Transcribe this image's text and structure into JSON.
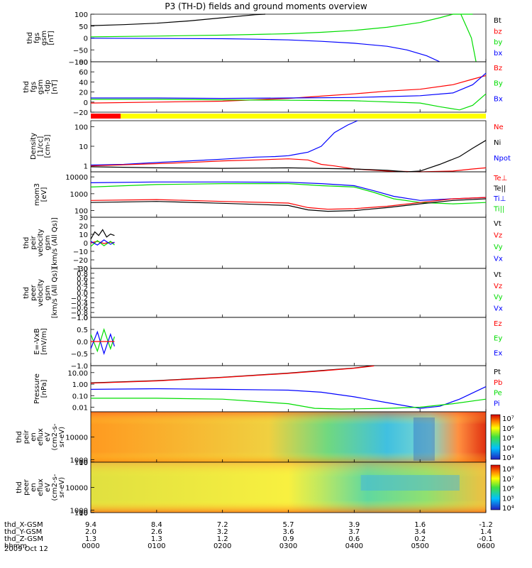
{
  "title": "P3 (TH-D) fields and ground moments overview",
  "date_label": "2009 Oct 12",
  "ephemeris": {
    "rows": [
      {
        "label": "thd_X-GSM",
        "values": [
          "9.4",
          "8.4",
          "7.2",
          "5.7",
          "3.9",
          "1.6",
          "-1.2"
        ]
      },
      {
        "label": "thd_Y-GSM",
        "values": [
          "2.0",
          "2.6",
          "3.2",
          "3.6",
          "3.7",
          "3.4",
          "1.4"
        ]
      },
      {
        "label": "thd_Z-GSM",
        "values": [
          "1.3",
          "1.3",
          "1.2",
          "0.9",
          "0.6",
          "0.2",
          "-0.1"
        ]
      },
      {
        "label": "hhmm",
        "values": [
          "0000",
          "0100",
          "0200",
          "0300",
          "0400",
          "0500",
          "0600"
        ]
      }
    ]
  },
  "colors": {
    "black": "#000000",
    "red": "#ff0000",
    "green": "#00dd00",
    "blue": "#0000ff",
    "yellow": "#ffff00"
  },
  "chart_data": [
    {
      "id": "p1",
      "type": "line",
      "ylabel": [
        "thd",
        "fgs",
        "gsm",
        "[nT]"
      ],
      "yticks": [
        "100",
        "50",
        "0",
        "−50",
        "−100"
      ],
      "ylim": [
        -100,
        100
      ],
      "legend": [
        {
          "text": "Bt",
          "color": "#000000"
        },
        {
          "text": "bz",
          "color": "#ff0000"
        },
        {
          "text": "by",
          "color": "#00dd00"
        },
        {
          "text": "bx",
          "color": "#0000ff"
        }
      ],
      "series": [
        {
          "name": "Bt",
          "color": "#000000",
          "x": [
            0,
            0.5,
            1,
            1.5,
            2,
            2.5,
            2.65
          ],
          "y": [
            52,
            56,
            62,
            72,
            85,
            98,
            103
          ]
        },
        {
          "name": "by",
          "color": "#00dd00",
          "x": [
            0,
            1,
            2,
            3,
            3.5,
            4,
            4.5,
            5,
            5.3,
            5.5,
            5.8
          ],
          "y": [
            5,
            8,
            12,
            18,
            24,
            32,
            45,
            65,
            85,
            100,
            100
          ]
        },
        {
          "name": "by-drop",
          "color": "#00dd00",
          "x": [
            5.62,
            5.7,
            5.78,
            5.85
          ],
          "y": [
            105,
            50,
            0,
            -105
          ]
        },
        {
          "name": "bx",
          "color": "#0000ff",
          "x": [
            0,
            1,
            2,
            2.5,
            3,
            3.5,
            4,
            4.5,
            4.8,
            5.1,
            5.3
          ],
          "y": [
            -1,
            -2,
            -3,
            -5,
            -8,
            -14,
            -22,
            -35,
            -50,
            -75,
            -100
          ]
        }
      ]
    },
    {
      "id": "p2",
      "type": "line",
      "ylabel": [
        "thd",
        "fgs",
        "gsm",
        "-tdp",
        "[nT]"
      ],
      "yticks": [
        "80",
        "60",
        "40",
        "20",
        "0",
        "−20"
      ],
      "ylim": [
        -30,
        80
      ],
      "legend": [
        {
          "text": "Bz",
          "color": "#ff0000"
        },
        {
          "text": "By",
          "color": "#00dd00"
        },
        {
          "text": "Bx",
          "color": "#0000ff"
        }
      ],
      "series": [
        {
          "name": "Bz",
          "color": "#ff0000",
          "x": [
            0,
            1,
            2,
            3,
            3.5,
            4,
            4.5,
            5,
            5.5,
            5.8,
            6
          ],
          "y": [
            -10,
            -8,
            -6,
            0,
            5,
            10,
            16,
            20,
            30,
            42,
            50
          ]
        },
        {
          "name": "By",
          "color": "#00dd00",
          "x": [
            0,
            1,
            2,
            3,
            4,
            5,
            5.3,
            5.6,
            5.8,
            6
          ],
          "y": [
            -2,
            -2,
            -3,
            -4,
            -5,
            -10,
            -18,
            -25,
            -15,
            10
          ]
        },
        {
          "name": "Bx",
          "color": "#0000ff",
          "x": [
            0,
            1,
            2,
            3,
            4,
            4.5,
            5,
            5.5,
            5.8,
            6
          ],
          "y": [
            1,
            1,
            0,
            1,
            2,
            4,
            6,
            12,
            30,
            55
          ]
        }
      ]
    },
    {
      "id": "p3",
      "type": "line",
      "log": true,
      "ylabel": [
        "Density",
        "[1/cc]",
        "[cm-3]"
      ],
      "yticks": [
        "100",
        "10",
        "1"
      ],
      "ylim": [
        0.5,
        200
      ],
      "legend": [
        {
          "text": "Ne",
          "color": "#ff0000"
        },
        {
          "text": "Ni",
          "color": "#000000"
        },
        {
          "text": "Npot",
          "color": "#0000ff"
        }
      ],
      "series": [
        {
          "name": "Npot",
          "color": "#0000ff",
          "x": [
            0,
            0.5,
            1,
            1.5,
            2,
            2.5,
            2.8,
            3,
            3.1,
            3.3,
            3.5,
            3.7,
            3.9,
            4.05
          ],
          "y": [
            1.1,
            1.2,
            1.5,
            1.8,
            2.2,
            2.8,
            3.0,
            3.3,
            3.8,
            5,
            10,
            50,
            120,
            200
          ]
        },
        {
          "name": "Ne",
          "color": "#ff0000",
          "x": [
            0,
            1,
            1.5,
            2,
            2.5,
            3,
            3.3,
            3.5,
            3.7,
            4,
            4.5,
            5,
            5.5,
            5.8,
            6
          ],
          "y": [
            1.0,
            1.3,
            1.5,
            1.8,
            2.0,
            2.3,
            2.0,
            1.2,
            1.0,
            0.7,
            0.55,
            0.5,
            0.55,
            0.7,
            0.8
          ]
        },
        {
          "name": "Ni",
          "color": "#000000",
          "x": [
            0,
            1,
            2,
            3,
            4,
            4.5,
            4.8,
            5,
            5.3,
            5.6,
            5.8,
            6
          ],
          "y": [
            0.9,
            0.8,
            0.75,
            0.8,
            0.7,
            0.6,
            0.5,
            0.55,
            1.2,
            3,
            8,
            20
          ]
        }
      ]
    },
    {
      "id": "p4",
      "type": "line",
      "log": true,
      "ylabel": [
        "mom3",
        "[eV]"
      ],
      "yticks": [
        "10000",
        "1000",
        "100"
      ],
      "ylim": [
        40,
        20000
      ],
      "legend": [
        {
          "text": "Te⊥",
          "color": "#ff0000"
        },
        {
          "text": "Te||",
          "color": "#000000"
        },
        {
          "text": "Ti⊥",
          "color": "#0000ff"
        },
        {
          "text": "Ti||",
          "color": "#00dd00"
        }
      ],
      "series": [
        {
          "name": "Ti⊥",
          "color": "#0000ff",
          "x": [
            0,
            1,
            2,
            3,
            3.5,
            4,
            4.3,
            4.6,
            5,
            5.5,
            6
          ],
          "y": [
            4500,
            5000,
            5000,
            4800,
            4000,
            3000,
            1500,
            700,
            400,
            500,
            600
          ]
        },
        {
          "name": "Ti||",
          "color": "#00dd00",
          "x": [
            0,
            1,
            2,
            3,
            3.5,
            4,
            4.3,
            4.6,
            5,
            5.5,
            6
          ],
          "y": [
            2500,
            3500,
            4000,
            4000,
            3000,
            2500,
            1200,
            500,
            300,
            250,
            300
          ]
        },
        {
          "name": "Te⊥",
          "color": "#ff0000",
          "x": [
            0,
            1,
            2,
            3,
            3.3,
            3.6,
            4,
            4.5,
            5,
            5.5,
            6
          ],
          "y": [
            400,
            450,
            350,
            280,
            150,
            120,
            130,
            180,
            300,
            500,
            600
          ]
        },
        {
          "name": "Te||",
          "color": "#000000",
          "x": [
            0,
            1,
            2,
            3,
            3.3,
            3.6,
            4,
            4.5,
            5,
            5.5,
            6
          ],
          "y": [
            300,
            350,
            270,
            200,
            110,
            90,
            100,
            150,
            250,
            400,
            500
          ]
        }
      ]
    },
    {
      "id": "p5",
      "type": "line",
      "ylabel": [
        "thd",
        "peir",
        "velocity",
        "gsm",
        "[km/s (All Qs)]"
      ],
      "yticks": [
        "30",
        "20",
        "10",
        "0",
        "−10",
        "−20",
        "−30"
      ],
      "ylim": [
        -35,
        35
      ],
      "legend": [
        {
          "text": "Vt",
          "color": "#000000"
        },
        {
          "text": "Vz",
          "color": "#ff0000"
        },
        {
          "text": "Vy",
          "color": "#00dd00"
        },
        {
          "text": "Vx",
          "color": "#0000ff"
        }
      ],
      "series": [
        {
          "name": "Vt",
          "color": "#000000",
          "x": [
            0,
            0.06,
            0.12,
            0.18,
            0.24,
            0.3,
            0.36
          ],
          "y": [
            5,
            15,
            10,
            18,
            8,
            12,
            10
          ]
        },
        {
          "name": "Vz",
          "color": "#ff0000",
          "x": [
            0,
            0.1,
            0.2,
            0.3,
            0.36
          ],
          "y": [
            0,
            2,
            -1,
            1,
            0
          ]
        },
        {
          "name": "Vy",
          "color": "#00dd00",
          "x": [
            0,
            0.1,
            0.2,
            0.3,
            0.36
          ],
          "y": [
            -5,
            3,
            -4,
            2,
            -3
          ]
        },
        {
          "name": "Vx",
          "color": "#0000ff",
          "x": [
            0,
            0.1,
            0.2,
            0.3,
            0.36
          ],
          "y": [
            2,
            -3,
            4,
            -2,
            1
          ]
        }
      ]
    },
    {
      "id": "p6",
      "type": "line",
      "ylabel": [
        "thd",
        "peer",
        "velocity",
        "gsm",
        "[km/s (All Qs)]"
      ],
      "yticks": [
        "1.0",
        "0.8",
        "0.6",
        "0.4",
        "0.2",
        "0.0",
        "−0.2",
        "−0.4",
        "−0.6",
        "−0.8",
        "−1.0"
      ],
      "ylim": [
        -1,
        1
      ],
      "legend": [
        {
          "text": "Vt",
          "color": "#000000"
        },
        {
          "text": "Vz",
          "color": "#ff0000"
        },
        {
          "text": "Vy",
          "color": "#00dd00"
        },
        {
          "text": "Vx",
          "color": "#0000ff"
        }
      ],
      "series": []
    },
    {
      "id": "p7",
      "type": "line",
      "ylabel": [
        "E=-VxB",
        "[mV/m]"
      ],
      "yticks": [
        "1.0",
        "0.5",
        "0.0",
        "−0.5",
        "−1.0"
      ],
      "ylim": [
        -1,
        1
      ],
      "legend": [
        {
          "text": "Ez",
          "color": "#ff0000"
        },
        {
          "text": "Ey",
          "color": "#00dd00"
        },
        {
          "text": "Ex",
          "color": "#0000ff"
        }
      ],
      "series": [
        {
          "name": "Ey",
          "color": "#00dd00",
          "x": [
            0,
            0.1,
            0.2,
            0.3,
            0.36
          ],
          "y": [
            0.3,
            -0.4,
            0.5,
            -0.3,
            0.2
          ]
        },
        {
          "name": "Ex",
          "color": "#0000ff",
          "x": [
            0,
            0.1,
            0.2,
            0.3,
            0.36
          ],
          "y": [
            -0.3,
            0.4,
            -0.5,
            0.3,
            -0.2
          ]
        },
        {
          "name": "Ez",
          "color": "#ff0000",
          "x": [
            0,
            0.18,
            0.36
          ],
          "y": [
            0,
            0,
            0
          ]
        }
      ]
    },
    {
      "id": "p8",
      "type": "line",
      "log": true,
      "ylabel": [
        "Pressure",
        "[nPa]"
      ],
      "yticks": [
        "10.00",
        "1.00",
        "0.10",
        "0.01"
      ],
      "ylim": [
        0.004,
        40
      ],
      "legend": [
        {
          "text": "Pt",
          "color": "#000000"
        },
        {
          "text": "Pb",
          "color": "#ff0000"
        },
        {
          "text": "Pe",
          "color": "#00dd00"
        },
        {
          "text": "Pi",
          "color": "#0000ff"
        }
      ],
      "series": [
        {
          "name": "Pt",
          "color": "#000000",
          "x": [
            0,
            1,
            2,
            3,
            3.5,
            4,
            4.3
          ],
          "y": [
            1.3,
            2.0,
            4.0,
            9,
            15,
            25,
            40
          ]
        },
        {
          "name": "Pb",
          "color": "#ff0000",
          "x": [
            0,
            1,
            2,
            3,
            3.5,
            4,
            4.3
          ],
          "y": [
            1.2,
            1.9,
            3.8,
            8.5,
            14,
            24,
            38
          ]
        },
        {
          "name": "Pi",
          "color": "#0000ff",
          "x": [
            0,
            1,
            2,
            3,
            3.5,
            4,
            4.5,
            5,
            5.3,
            5.6,
            6
          ],
          "y": [
            0.35,
            0.4,
            0.35,
            0.3,
            0.2,
            0.08,
            0.025,
            0.008,
            0.012,
            0.05,
            0.6
          ]
        },
        {
          "name": "Pe",
          "color": "#00dd00",
          "x": [
            0,
            1,
            2,
            3,
            3.4,
            3.8,
            4.5,
            5,
            5.5,
            6
          ],
          "y": [
            0.06,
            0.06,
            0.05,
            0.02,
            0.008,
            0.007,
            0.008,
            0.01,
            0.02,
            0.05
          ]
        }
      ]
    },
    {
      "id": "p9",
      "type": "heatmap",
      "ylabel": [
        "thd",
        "peir",
        "en",
        "eflux",
        "eV",
        "(cm2-s-",
        "sr-eV)"
      ],
      "yticks": [
        "10000",
        "1000",
        "100",
        "10"
      ],
      "ylim": [
        7,
        20000
      ],
      "colorbar_ticks": [
        "10⁷",
        "10⁶",
        "10⁵",
        "10⁴",
        "10³"
      ]
    },
    {
      "id": "p10",
      "type": "heatmap",
      "ylabel": [
        "thd",
        "peer",
        "en",
        "eflux",
        "eV",
        "(cm2-s-",
        "sr-eV)"
      ],
      "yticks": [
        "10000",
        "1000",
        "100",
        "10"
      ],
      "ylim": [
        7,
        20000
      ],
      "colorbar_ticks": [
        "10⁸",
        "10⁷",
        "10⁶",
        "10⁵",
        "10⁴"
      ]
    }
  ]
}
